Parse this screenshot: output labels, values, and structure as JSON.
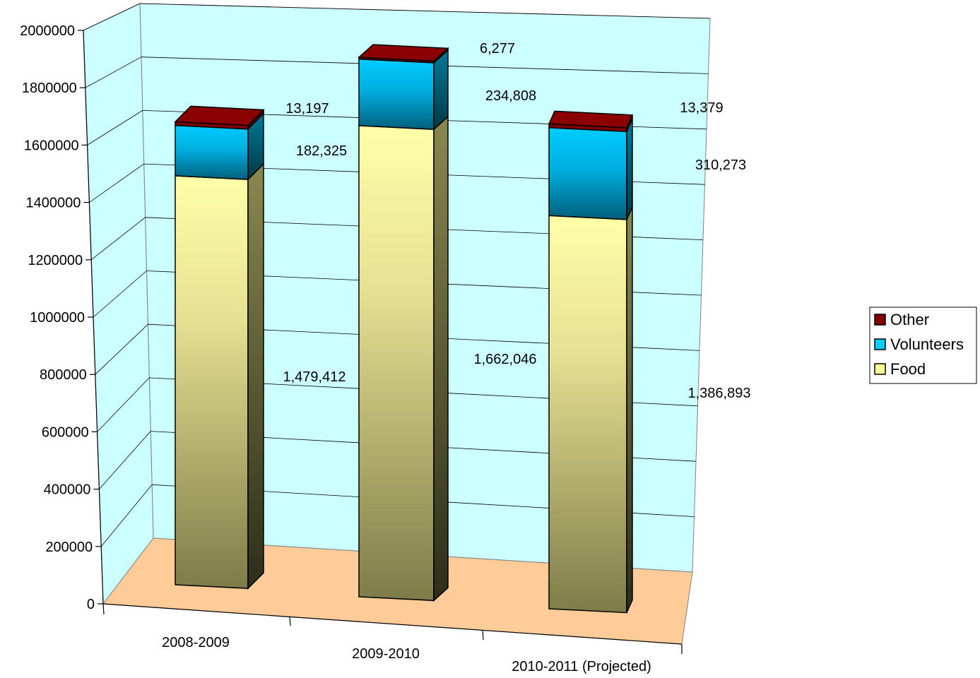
{
  "chart_data": {
    "type": "bar",
    "stacked": true,
    "three_d": true,
    "categories": [
      "2008-2009",
      "2009-2010",
      "2010-2011 (Projected)"
    ],
    "series": [
      {
        "name": "Food",
        "values": [
          1479412,
          1662046,
          1386893
        ],
        "labels": [
          "1,479,412",
          "1,662,046",
          "1,386,893"
        ],
        "color": "#f4f0a0"
      },
      {
        "name": "Volunteers",
        "values": [
          182325,
          234808,
          310273
        ],
        "labels": [
          "182,325",
          "234,808",
          "310,273"
        ],
        "color": "#00ccff"
      },
      {
        "name": "Other",
        "values": [
          13197,
          6277,
          13379
        ],
        "labels": [
          "13,197",
          "6,277",
          "13,379"
        ],
        "color": "#800000"
      }
    ],
    "y_ticks": [
      "0",
      "200000",
      "400000",
      "600000",
      "800000",
      "1000000",
      "1200000",
      "1400000",
      "1600000",
      "1800000",
      "2000000"
    ],
    "ylim": [
      0,
      2000000
    ],
    "grid": true,
    "legend_position": "right",
    "legend_order": [
      "Other",
      "Volunteers",
      "Food"
    ],
    "colors": {
      "back_wall": "#ccffff",
      "floor": "#ffcc99",
      "gridline": "#000000"
    }
  }
}
